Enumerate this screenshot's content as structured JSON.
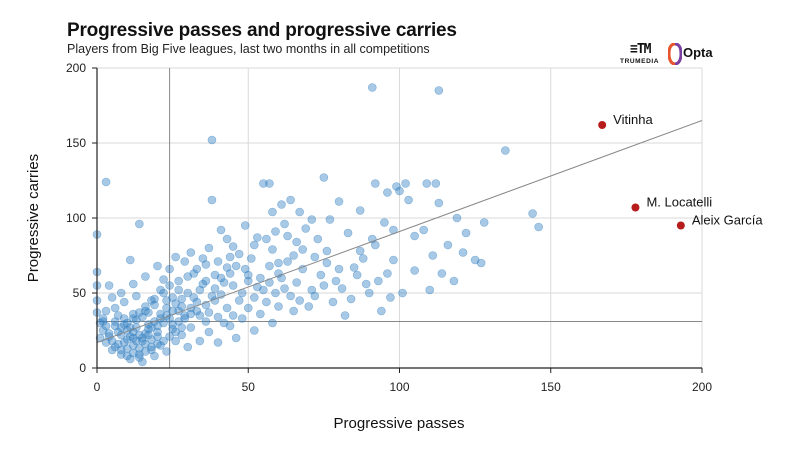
{
  "title": "Progressive passes and progressive carries",
  "subtitle": "Players from Big Five leagues, last two months in all competitions",
  "logos": {
    "trumedia": "TRUMEDIA",
    "trumedia_mark": "≡TM",
    "opta": "Opta"
  },
  "colors": {
    "points": "#2f7ec1",
    "highlight": "#b71c1c",
    "grid": "#d9d9d9",
    "axis": "#222222",
    "reference": "#888888",
    "trend": "#888888"
  },
  "chart_data": {
    "type": "scatter",
    "title": "Progressive passes and progressive carries",
    "subtitle": "Players from Big Five leagues, last two months in all competitions",
    "xlabel": "Progressive passes",
    "ylabel": "Progressive carries",
    "xlim": [
      0,
      200
    ],
    "ylim": [
      0,
      200
    ],
    "xticks": [
      0,
      50,
      100,
      150,
      200
    ],
    "yticks": [
      0,
      50,
      100,
      150,
      200
    ],
    "grid": true,
    "reference_lines": {
      "x": 24,
      "y": 31
    },
    "trend_line": [
      [
        0,
        17
      ],
      [
        200,
        165
      ]
    ],
    "highlighted": [
      {
        "label": "Vitinha",
        "x": 167,
        "y": 162
      },
      {
        "label": "M. Locatelli",
        "x": 178,
        "y": 107
      },
      {
        "label": "Aleix García",
        "x": 193,
        "y": 95
      }
    ],
    "points": [
      [
        91,
        187
      ],
      [
        113,
        185
      ],
      [
        38,
        152
      ],
      [
        135,
        145
      ],
      [
        3,
        124
      ],
      [
        144,
        103
      ],
      [
        146,
        94
      ],
      [
        0,
        89
      ],
      [
        75,
        127
      ],
      [
        55,
        123
      ],
      [
        57,
        123
      ],
      [
        92,
        123
      ],
      [
        99,
        121
      ],
      [
        102,
        123
      ],
      [
        112,
        123
      ],
      [
        109,
        123
      ],
      [
        100,
        118
      ],
      [
        96,
        117
      ],
      [
        14,
        96
      ],
      [
        38,
        112
      ],
      [
        64,
        112
      ],
      [
        80,
        111
      ],
      [
        87,
        105
      ],
      [
        103,
        112
      ],
      [
        113,
        110
      ],
      [
        119,
        100
      ],
      [
        128,
        97
      ],
      [
        122,
        90
      ],
      [
        116,
        82
      ],
      [
        121,
        77
      ],
      [
        127,
        70
      ],
      [
        114,
        63
      ],
      [
        110,
        52
      ],
      [
        101,
        50
      ],
      [
        94,
        38
      ],
      [
        81,
        53
      ],
      [
        85,
        67
      ],
      [
        92,
        82
      ],
      [
        105,
        88
      ],
      [
        111,
        75
      ],
      [
        98,
        72
      ],
      [
        88,
        73
      ],
      [
        96,
        63
      ],
      [
        76,
        78
      ],
      [
        69,
        93
      ],
      [
        71,
        99
      ],
      [
        73,
        86
      ],
      [
        58,
        104
      ],
      [
        62,
        96
      ],
      [
        66,
        84
      ],
      [
        53,
        87
      ],
      [
        58,
        79
      ],
      [
        51,
        73
      ],
      [
        45,
        81
      ],
      [
        41,
        92
      ],
      [
        46,
        68
      ],
      [
        39,
        62
      ],
      [
        42,
        57
      ],
      [
        32,
        63
      ],
      [
        35,
        73
      ],
      [
        25,
        47
      ],
      [
        29,
        71
      ],
      [
        27,
        52
      ],
      [
        22,
        59
      ],
      [
        19,
        42
      ],
      [
        24,
        66
      ],
      [
        16,
        38
      ],
      [
        13,
        48
      ],
      [
        9,
        44
      ],
      [
        11,
        72
      ],
      [
        4,
        55
      ],
      [
        6,
        40
      ],
      [
        0,
        64
      ],
      [
        0,
        55
      ],
      [
        0,
        45
      ],
      [
        0,
        37
      ],
      [
        1,
        30
      ],
      [
        2,
        25
      ],
      [
        1,
        20
      ],
      [
        3,
        17
      ],
      [
        5,
        12
      ],
      [
        8,
        9
      ],
      [
        11,
        6
      ],
      [
        15,
        4
      ],
      [
        19,
        8
      ],
      [
        23,
        11
      ],
      [
        30,
        14
      ],
      [
        34,
        18
      ],
      [
        37,
        24
      ],
      [
        44,
        28
      ],
      [
        48,
        33
      ],
      [
        54,
        36
      ],
      [
        60,
        41
      ],
      [
        67,
        45
      ],
      [
        72,
        48
      ],
      [
        78,
        44
      ],
      [
        84,
        46
      ],
      [
        89,
        56
      ],
      [
        61,
        60
      ],
      [
        66,
        57
      ],
      [
        55,
        52
      ],
      [
        50,
        58
      ],
      [
        47,
        45
      ],
      [
        43,
        40
      ],
      [
        40,
        34
      ],
      [
        36,
        31
      ],
      [
        31,
        27
      ],
      [
        28,
        22
      ],
      [
        26,
        18
      ],
      [
        21,
        15
      ],
      [
        18,
        12
      ],
      [
        14,
        9
      ],
      [
        10,
        13
      ],
      [
        7,
        16
      ],
      [
        4,
        21
      ],
      [
        6,
        28
      ],
      [
        9,
        33
      ],
      [
        12,
        36
      ],
      [
        17,
        29
      ],
      [
        20,
        24
      ],
      [
        24,
        33
      ],
      [
        27,
        38
      ],
      [
        33,
        44
      ],
      [
        30,
        50
      ],
      [
        38,
        48
      ],
      [
        35,
        56
      ],
      [
        44,
        63
      ],
      [
        49,
        66
      ],
      [
        57,
        68
      ],
      [
        63,
        71
      ],
      [
        68,
        66
      ],
      [
        74,
        62
      ],
      [
        79,
        58
      ],
      [
        86,
        62
      ],
      [
        93,
        58
      ],
      [
        97,
        47
      ],
      [
        15,
        18
      ],
      [
        12,
        20
      ],
      [
        10,
        25
      ],
      [
        8,
        22
      ],
      [
        13,
        27
      ],
      [
        16,
        23
      ],
      [
        22,
        30
      ],
      [
        25,
        26
      ],
      [
        29,
        35
      ],
      [
        33,
        38
      ],
      [
        36,
        42
      ],
      [
        39,
        45
      ],
      [
        41,
        49
      ],
      [
        52,
        47
      ],
      [
        56,
        44
      ],
      [
        59,
        50
      ],
      [
        62,
        53
      ],
      [
        65,
        38
      ],
      [
        70,
        41
      ],
      [
        58,
        30
      ],
      [
        52,
        25
      ],
      [
        46,
        20
      ],
      [
        40,
        17
      ],
      [
        12,
        15
      ],
      [
        14,
        13
      ],
      [
        16,
        16
      ],
      [
        18,
        19
      ],
      [
        20,
        21
      ],
      [
        17,
        26
      ],
      [
        19,
        31
      ],
      [
        21,
        36
      ],
      [
        23,
        40
      ],
      [
        26,
        43
      ],
      [
        28,
        46
      ],
      [
        31,
        40
      ],
      [
        34,
        35
      ],
      [
        37,
        37
      ],
      [
        42,
        30
      ],
      [
        45,
        35
      ],
      [
        50,
        40
      ],
      [
        53,
        54
      ],
      [
        60,
        63
      ],
      [
        64,
        48
      ],
      [
        71,
        52
      ],
      [
        75,
        55
      ],
      [
        82,
        35
      ],
      [
        90,
        50
      ],
      [
        105,
        65
      ],
      [
        118,
        58
      ],
      [
        125,
        72
      ],
      [
        108,
        92
      ],
      [
        95,
        97
      ],
      [
        83,
        90
      ],
      [
        77,
        99
      ],
      [
        67,
        104
      ],
      [
        61,
        109
      ],
      [
        49,
        95
      ],
      [
        43,
        86
      ],
      [
        37,
        80
      ],
      [
        31,
        77
      ],
      [
        26,
        74
      ],
      [
        20,
        68
      ],
      [
        16,
        61
      ],
      [
        12,
        56
      ],
      [
        8,
        50
      ],
      [
        5,
        47
      ],
      [
        3,
        38
      ],
      [
        2,
        33
      ],
      [
        7,
        35
      ],
      [
        9,
        29
      ],
      [
        11,
        27
      ],
      [
        6,
        31
      ],
      [
        13,
        32
      ],
      [
        15,
        34
      ],
      [
        17,
        37
      ],
      [
        19,
        46
      ],
      [
        22,
        50
      ],
      [
        24,
        55
      ],
      [
        27,
        58
      ],
      [
        30,
        61
      ],
      [
        33,
        66
      ],
      [
        36,
        69
      ],
      [
        40,
        71
      ],
      [
        44,
        74
      ],
      [
        47,
        76
      ],
      [
        52,
        82
      ],
      [
        56,
        86
      ],
      [
        59,
        91
      ],
      [
        63,
        88
      ],
      [
        68,
        79
      ],
      [
        72,
        74
      ],
      [
        76,
        70
      ],
      [
        80,
        66
      ],
      [
        87,
        78
      ],
      [
        91,
        86
      ],
      [
        98,
        92
      ],
      [
        14,
        22
      ],
      [
        12,
        24
      ],
      [
        10,
        19
      ],
      [
        9,
        17
      ],
      [
        11,
        21
      ],
      [
        13,
        18
      ],
      [
        15,
        20
      ],
      [
        17,
        22
      ],
      [
        18,
        27
      ],
      [
        20,
        28
      ],
      [
        21,
        33
      ],
      [
        23,
        35
      ],
      [
        25,
        29
      ],
      [
        27,
        31
      ],
      [
        29,
        33
      ],
      [
        31,
        36
      ],
      [
        26,
        24
      ],
      [
        28,
        27
      ],
      [
        24,
        21
      ],
      [
        22,
        18
      ],
      [
        20,
        16
      ],
      [
        18,
        14
      ],
      [
        16,
        11
      ],
      [
        14,
        7
      ],
      [
        12,
        10
      ],
      [
        10,
        8
      ],
      [
        8,
        12
      ],
      [
        6,
        14
      ],
      [
        5,
        18
      ],
      [
        4,
        23
      ],
      [
        3,
        28
      ],
      [
        2,
        31
      ],
      [
        7,
        24
      ],
      [
        8,
        27
      ],
      [
        10,
        30
      ],
      [
        12,
        33
      ],
      [
        14,
        37
      ],
      [
        16,
        41
      ],
      [
        18,
        45
      ],
      [
        21,
        52
      ],
      [
        23,
        45
      ],
      [
        25,
        38
      ],
      [
        28,
        41
      ],
      [
        32,
        47
      ],
      [
        34,
        52
      ],
      [
        36,
        58
      ],
      [
        39,
        53
      ],
      [
        41,
        60
      ],
      [
        43,
        67
      ],
      [
        45,
        55
      ],
      [
        48,
        50
      ],
      [
        50,
        62
      ],
      [
        54,
        60
      ],
      [
        57,
        57
      ],
      [
        60,
        70
      ],
      [
        65,
        75
      ]
    ]
  }
}
